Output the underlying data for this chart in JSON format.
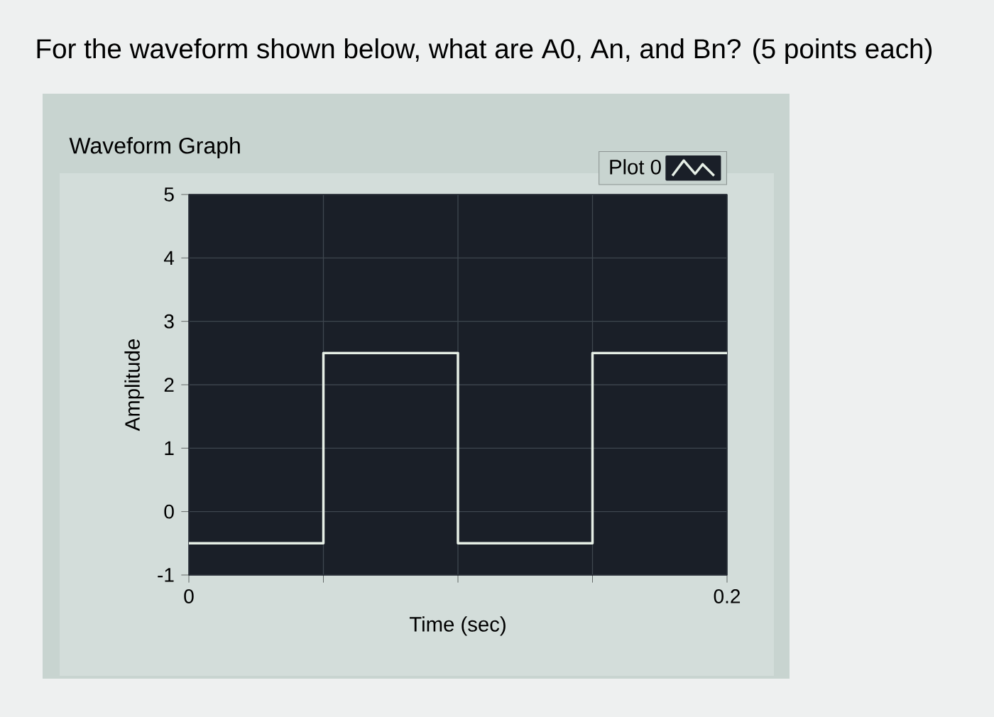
{
  "chart_data": {
    "type": "step",
    "title": "For the waveform shown below, what are A0, An, and Bn? (5 points each)",
    "subtitle": "Waveform Graph",
    "xlabel": "Time (sec)",
    "ylabel": "Amplitude",
    "x": [
      0,
      0.05,
      0.1,
      0.15,
      0.2
    ],
    "series": [
      {
        "name": "Plot 0",
        "color": "#e6efe6",
        "values": [
          -0.5,
          2.5,
          -0.5,
          2.5,
          2.5
        ]
      }
    ],
    "xlim": [
      0,
      0.2
    ],
    "ylim": [
      -1,
      5
    ],
    "xticks": [
      0,
      {
        "value": 0.05,
        "label": null
      },
      {
        "value": 0.1,
        "label": null
      },
      {
        "value": 0.15,
        "label": null
      },
      0.2
    ],
    "yticks": [
      -1,
      0,
      1,
      2,
      3,
      4,
      5
    ],
    "grid": true,
    "legend": "top right",
    "marker": "none",
    "line_style": "solid"
  }
}
